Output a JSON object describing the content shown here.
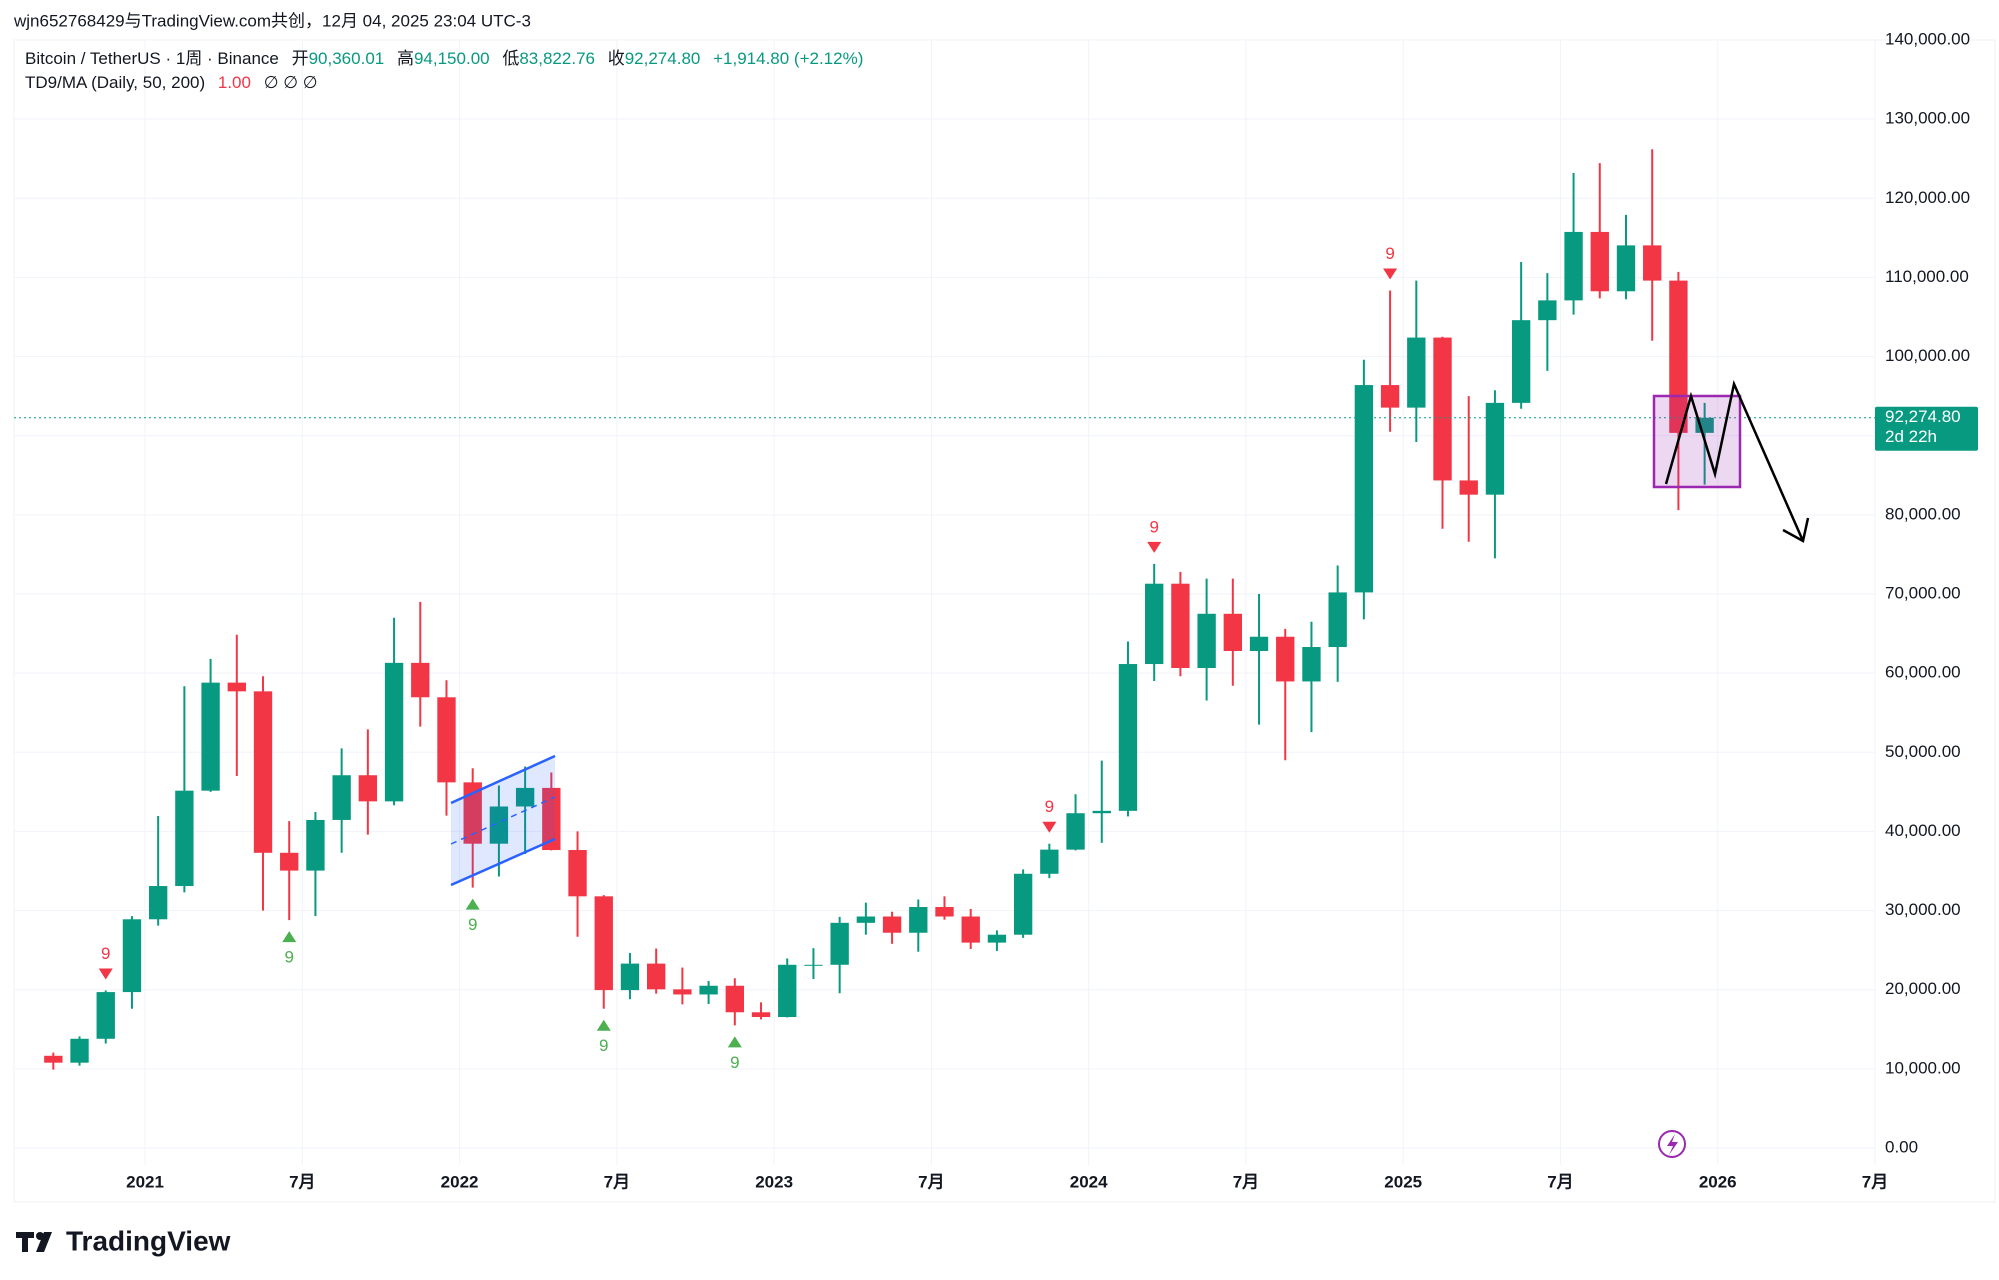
{
  "header": {
    "watermark": "wjn652768429与TradingView.com共创，12月 04, 2025 23:04 UTC-3",
    "symbol": "Bitcoin / TetherUS · 1周 · Binance",
    "open_label": "开",
    "open": "90,360.01",
    "high_label": "高",
    "high": "94,150.00",
    "low_label": "低",
    "low": "83,822.76",
    "close_label": "收",
    "close": "92,274.80",
    "change": "+1,914.80 (+2.12%)",
    "indicator": "TD9/MA (Daily, 50, 200)",
    "indicator_value": "1.00",
    "indicator_flags": "∅  ∅  ∅"
  },
  "price_label": {
    "price": "92,274.80",
    "countdown": "2d 22h"
  },
  "footer": {
    "logo": "TradingView"
  },
  "chart_data": {
    "type": "candlestick",
    "up_color": "#089981",
    "down_color": "#f23645",
    "grid": true,
    "x": [
      "2020-09",
      "2020-10",
      "2020-11",
      "2020-12",
      "2021-01",
      "2021-02",
      "2021-03",
      "2021-04",
      "2021-05",
      "2021-06",
      "2021-07",
      "2021-08",
      "2021-09",
      "2021-10",
      "2021-11",
      "2021-12",
      "2022-01",
      "2022-02",
      "2022-03",
      "2022-04",
      "2022-05",
      "2022-06",
      "2022-07",
      "2022-08",
      "2022-09",
      "2022-10",
      "2022-11",
      "2022-12",
      "2023-01",
      "2023-02",
      "2023-03",
      "2023-04",
      "2023-05",
      "2023-06",
      "2023-07",
      "2023-08",
      "2023-09",
      "2023-10",
      "2023-11",
      "2023-12",
      "2024-01",
      "2024-02",
      "2024-03",
      "2024-04",
      "2024-05",
      "2024-06",
      "2024-07",
      "2024-08",
      "2024-09",
      "2024-10",
      "2024-11",
      "2024-12",
      "2025-01",
      "2025-02",
      "2025-03",
      "2025-04",
      "2025-05",
      "2025-06",
      "2025-07",
      "2025-08",
      "2025-09",
      "2025-10",
      "2025-11",
      "2025-12"
    ],
    "open": [
      11650,
      10780,
      13800,
      19700,
      28900,
      33100,
      45150,
      58800,
      57700,
      37300,
      35050,
      41450,
      47100,
      43800,
      61300,
      56950,
      46200,
      38450,
      43150,
      45500,
      37650,
      31800,
      19950,
      23300,
      20050,
      19400,
      20500,
      17150,
      16550,
      23150,
      23150,
      28450,
      29250,
      27200,
      30450,
      29250,
      25950,
      26950,
      34650,
      37700,
      42300,
      42600,
      61150,
      71300,
      60650,
      67500,
      62800,
      64600,
      58950,
      63300,
      70200,
      96400,
      93550,
      102400,
      84350,
      82550,
      94150,
      104600,
      107100,
      115750,
      108250,
      114050,
      109600,
      90360.01
    ],
    "high": [
      12050,
      14100,
      19900,
      29300,
      41950,
      58350,
      61800,
      64850,
      59600,
      41300,
      42450,
      50500,
      52900,
      67000,
      69000,
      59100,
      47990,
      45800,
      48200,
      47450,
      40000,
      31950,
      24650,
      25200,
      22800,
      21100,
      21450,
      18400,
      23950,
      25250,
      29200,
      31000,
      29850,
      31400,
      31800,
      30200,
      27500,
      35200,
      38450,
      44700,
      48950,
      64000,
      73800,
      72800,
      71950,
      71950,
      70000,
      65600,
      66500,
      73600,
      99600,
      108350,
      109600,
      102500,
      95000,
      95750,
      111950,
      110550,
      123200,
      124450,
      117900,
      126200,
      110700,
      94150
    ],
    "low": [
      9900,
      10400,
      13200,
      17600,
      28100,
      32300,
      45000,
      47000,
      30000,
      28800,
      29300,
      37300,
      39600,
      43300,
      53250,
      42000,
      32900,
      34300,
      37150,
      37600,
      26700,
      17600,
      18800,
      19500,
      18150,
      18200,
      15500,
      16250,
      16500,
      21350,
      19550,
      26950,
      25800,
      24800,
      28850,
      25150,
      24900,
      26550,
      34100,
      37600,
      38550,
      41900,
      59000,
      59600,
      56550,
      58400,
      53500,
      49000,
      52550,
      58900,
      66800,
      90500,
      89200,
      78250,
      76600,
      74500,
      93400,
      98200,
      105300,
      107350,
      107250,
      102000,
      80600,
      83822.76
    ],
    "close": [
      10780,
      13800,
      19700,
      28900,
      33100,
      45150,
      58800,
      57700,
      37300,
      35050,
      41450,
      47100,
      43800,
      61300,
      56950,
      46200,
      38450,
      43150,
      45500,
      37650,
      31800,
      19950,
      23300,
      20050,
      19400,
      20500,
      17150,
      16550,
      23150,
      23150,
      28450,
      29250,
      27200,
      30450,
      29250,
      25950,
      26950,
      34650,
      37700,
      42300,
      42600,
      61150,
      71300,
      60650,
      67500,
      62800,
      64600,
      58950,
      63300,
      70200,
      96400,
      93550,
      102400,
      84350,
      82550,
      94150,
      104600,
      107100,
      115750,
      108250,
      114050,
      109600,
      90360,
      92274.8
    ],
    "xlim": [
      "2020-08",
      "2026-07"
    ],
    "xticks": [
      {
        "value": "2021-01",
        "label": "2021"
      },
      {
        "value": "2021-07",
        "label": "7月"
      },
      {
        "value": "2022-01",
        "label": "2022"
      },
      {
        "value": "2022-07",
        "label": "7月"
      },
      {
        "value": "2023-01",
        "label": "2023"
      },
      {
        "value": "2023-07",
        "label": "7月"
      },
      {
        "value": "2024-01",
        "label": "2024"
      },
      {
        "value": "2024-07",
        "label": "7月"
      },
      {
        "value": "2025-01",
        "label": "2025"
      },
      {
        "value": "2025-07",
        "label": "7月"
      },
      {
        "value": "2026-01",
        "label": "2026"
      },
      {
        "value": "2026-07",
        "label": "7月"
      }
    ],
    "ylim": [
      0,
      140000
    ],
    "yticks": [
      {
        "value": 0,
        "label": "0.00"
      },
      {
        "value": 10000,
        "label": "10,000.00"
      },
      {
        "value": 20000,
        "label": "20,000.00"
      },
      {
        "value": 30000,
        "label": "30,000.00"
      },
      {
        "value": 40000,
        "label": "40,000.00"
      },
      {
        "value": 50000,
        "label": "50,000.00"
      },
      {
        "value": 60000,
        "label": "60,000.00"
      },
      {
        "value": 70000,
        "label": "70,000.00"
      },
      {
        "value": 80000,
        "label": "80,000.00"
      },
      {
        "value": 90000,
        "label": "90,000.00"
      },
      {
        "value": 100000,
        "label": "100,000.00"
      },
      {
        "value": 110000,
        "label": "110,000.00"
      },
      {
        "value": 120000,
        "label": "120,000.00"
      },
      {
        "value": 130000,
        "label": "130,000.00"
      },
      {
        "value": 140000,
        "label": "140,000.00"
      }
    ],
    "annotations": [
      {
        "x": "2020-11",
        "label": "9",
        "color": "#f23645",
        "side": "above"
      },
      {
        "x": "2021-06",
        "label": "9",
        "color": "#4caf50",
        "side": "below"
      },
      {
        "x": "2022-01",
        "label": "9",
        "color": "#4caf50",
        "side": "below"
      },
      {
        "x": "2022-06",
        "label": "9",
        "color": "#4caf50",
        "side": "below"
      },
      {
        "x": "2022-11",
        "label": "9",
        "color": "#4caf50",
        "side": "below"
      },
      {
        "x": "2023-11",
        "label": "9",
        "color": "#f23645",
        "side": "above"
      },
      {
        "x": "2024-03",
        "label": "9",
        "color": "#f23645",
        "side": "above"
      },
      {
        "x": "2024-12",
        "label": "9",
        "color": "#f23645",
        "side": "above"
      }
    ]
  }
}
